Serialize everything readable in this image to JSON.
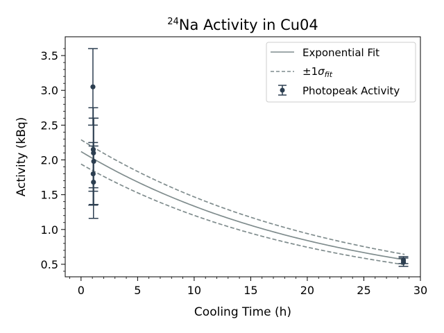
{
  "chart_data": {
    "type": "scatter",
    "title": {
      "superscript": "24",
      "main": "Na Activity in Cu04"
    },
    "xlabel": "Cooling Time (h)",
    "ylabel": "Activity (kBq)",
    "xlim": [
      -1.4,
      30
    ],
    "ylim": [
      0.32,
      3.77
    ],
    "xticks": [
      0,
      5,
      10,
      15,
      20,
      25,
      30
    ],
    "yticks": [
      0.5,
      1.0,
      1.5,
      2.0,
      2.5,
      3.0,
      3.5
    ],
    "xtick_labels": [
      "0",
      "5",
      "10",
      "15",
      "20",
      "25",
      "30"
    ],
    "ytick_labels": [
      "0.5",
      "1.0",
      "1.5",
      "2.0",
      "2.5",
      "3.0",
      "3.5"
    ],
    "grid": false,
    "legend_position": "top-right",
    "series": [
      {
        "name": "Exponential Fit",
        "kind": "line",
        "color": "#7f8c8d",
        "A0": 2.12,
        "half_life_h": 15.0
      },
      {
        "name": "±1σfit",
        "kind": "dashed-band",
        "color": "#7f8c8d",
        "upper": {
          "A0": 2.29,
          "half_life_h": 15.6
        },
        "lower": {
          "A0": 1.94,
          "half_life_h": 14.5
        }
      },
      {
        "name": "Photopeak Activity",
        "kind": "errorbar",
        "color": "#2c3e50",
        "points": [
          {
            "x": 1.05,
            "y": 3.05,
            "err": 0.55
          },
          {
            "x": 1.08,
            "y": 2.15,
            "err": 0.6
          },
          {
            "x": 1.1,
            "y": 2.1,
            "err": 0.5
          },
          {
            "x": 1.12,
            "y": 1.98,
            "err": 0.62
          },
          {
            "x": 1.07,
            "y": 1.8,
            "err": 0.45
          },
          {
            "x": 1.1,
            "y": 1.68,
            "err": 0.52
          },
          {
            "x": 28.5,
            "y": 0.56,
            "err": 0.05
          },
          {
            "x": 28.5,
            "y": 0.53,
            "err": 0.06
          }
        ]
      }
    ],
    "legend": [
      {
        "label": "Exponential Fit",
        "style": "solid"
      },
      {
        "label": "±1",
        "sigma": "σ",
        "subscript": "fit",
        "style": "dashed"
      },
      {
        "label": "Photopeak Activity",
        "style": "errorbar"
      }
    ]
  }
}
